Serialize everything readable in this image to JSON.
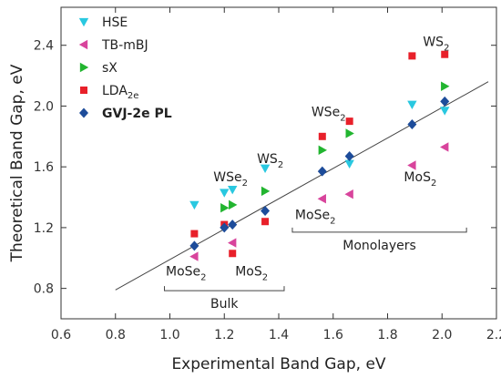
{
  "chart_data": {
    "type": "scatter",
    "xlabel": "Experimental Band Gap, eV",
    "ylabel": "Theoretical Band Gap, eV",
    "xlim": [
      0.6,
      2.2
    ],
    "ylim": [
      0.6,
      2.65
    ],
    "x_ticks": [
      "0.6",
      "0.8",
      "1.0",
      "1.2",
      "1.4",
      "1.6",
      "1.8",
      "2.0",
      "2.2"
    ],
    "y_ticks": [
      "0.8",
      "1.2",
      "1.6",
      "2.0",
      "2.4"
    ],
    "grid": false,
    "legend_position": "top-left",
    "series": [
      {
        "name": "HSE",
        "name_sub": "",
        "bold": false,
        "color": "#29c8e0",
        "marker": "triangle-down",
        "x": [
          1.09,
          1.2,
          1.23,
          1.35,
          1.66,
          1.89,
          2.01
        ],
        "y": [
          1.35,
          1.43,
          1.45,
          1.59,
          1.62,
          2.01,
          1.97
        ]
      },
      {
        "name": "TB-mBJ",
        "name_sub": "",
        "bold": false,
        "color": "#d8449c",
        "marker": "triangle-left",
        "x": [
          1.09,
          1.23,
          1.56,
          1.66,
          1.89,
          2.01
        ],
        "y": [
          1.01,
          1.1,
          1.39,
          1.42,
          1.61,
          1.73
        ]
      },
      {
        "name": "sX",
        "name_sub": "",
        "bold": false,
        "color": "#22b530",
        "marker": "triangle-right",
        "x": [
          1.2,
          1.23,
          1.35,
          1.56,
          1.66,
          2.01
        ],
        "y": [
          1.33,
          1.35,
          1.44,
          1.71,
          1.82,
          2.13
        ]
      },
      {
        "name": "LDA",
        "name_sub": "2e",
        "bold": false,
        "color": "#e8202a",
        "marker": "square",
        "x": [
          1.09,
          1.2,
          1.23,
          1.35,
          1.56,
          1.66,
          1.89,
          2.01
        ],
        "y": [
          1.16,
          1.22,
          1.03,
          1.24,
          1.8,
          1.9,
          2.33,
          2.34
        ]
      },
      {
        "name": "GVJ-2e PL",
        "name_sub": "",
        "bold": true,
        "color": "#1d4c9a",
        "marker": "diamond",
        "x": [
          1.09,
          1.2,
          1.23,
          1.35,
          1.56,
          1.66,
          1.89,
          2.01
        ],
        "y": [
          1.08,
          1.2,
          1.22,
          1.31,
          1.57,
          1.67,
          1.88,
          2.03
        ]
      }
    ],
    "fit_line": {
      "x": [
        0.8,
        2.17
      ],
      "y": [
        0.79,
        2.16
      ],
      "color": "#444444"
    },
    "annotations": [
      {
        "main": "WS",
        "sub": "2",
        "x": 1.32,
        "y": 1.625
      },
      {
        "main": "WSe",
        "sub": "2",
        "x": 1.16,
        "y": 1.505
      },
      {
        "main": "WSe",
        "sub": "2",
        "x": 1.52,
        "y": 1.935
      },
      {
        "main": "WS",
        "sub": "2",
        "x": 1.93,
        "y": 2.395
      },
      {
        "main": "MoS",
        "sub": "2",
        "x": 1.86,
        "y": 1.505
      },
      {
        "main": "MoSe",
        "sub": "2",
        "x": 1.46,
        "y": 1.255
      },
      {
        "main": "MoSe",
        "sub": "2",
        "x": 0.985,
        "y": 0.885
      },
      {
        "main": "MoS",
        "sub": "2",
        "x": 1.24,
        "y": 0.885
      }
    ],
    "brackets": [
      {
        "label": "Bulk",
        "x_from": 0.98,
        "x_to": 1.42,
        "y": 0.785
      },
      {
        "label": "Monolayers",
        "x_from": 1.45,
        "x_to": 2.09,
        "y": 1.17
      }
    ]
  }
}
